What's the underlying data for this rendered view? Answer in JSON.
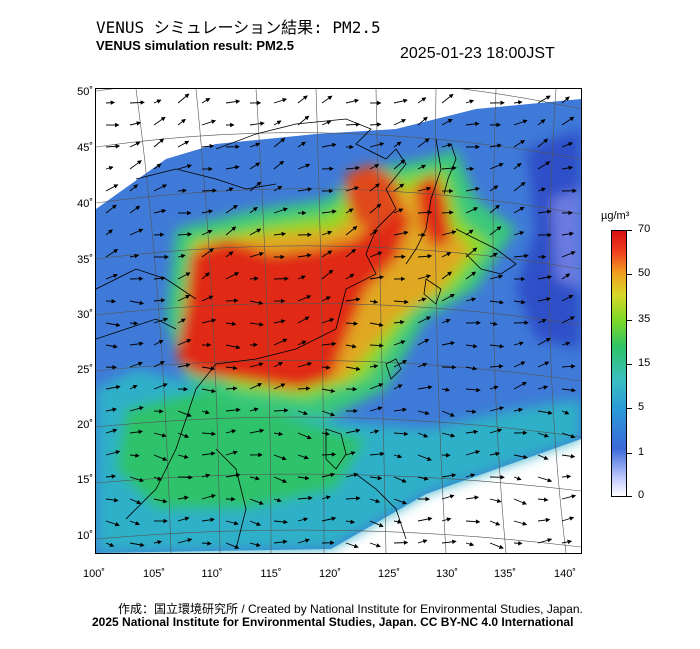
{
  "header": {
    "title_jp": "VENUS シミュレーション結果: PM2.5",
    "title_en": "VENUS simulation result: PM2.5",
    "timestamp": "2025-01-23 18:00JST"
  },
  "axes": {
    "lat_ticks": [
      "50˚",
      "45˚",
      "40˚",
      "35˚",
      "30˚",
      "25˚",
      "20˚",
      "15˚",
      "10˚"
    ],
    "lon_ticks": [
      "100˚",
      "105˚",
      "110˚",
      "115˚",
      "120˚",
      "125˚",
      "130˚",
      "135˚",
      "140˚"
    ]
  },
  "colorbar": {
    "unit": "µg/m³",
    "labels": [
      "70",
      "50",
      "35",
      "15",
      "5",
      "1",
      "0"
    ],
    "colors": [
      "#ffffff",
      "#c8d0ff",
      "#3a6ad8",
      "#2a9ad8",
      "#3ac0c0",
      "#2ec26a",
      "#7ad828",
      "#d8d828",
      "#f0a020",
      "#f04020",
      "#d81010"
    ]
  },
  "footer": {
    "credit_jp": "作成：国立環境研究所 / Created by National Institute for Environmental Studies, Japan.",
    "credit_en": "2025 National Institute for Environmental Studies, Japan. CC BY-NC 4.0 International"
  }
}
